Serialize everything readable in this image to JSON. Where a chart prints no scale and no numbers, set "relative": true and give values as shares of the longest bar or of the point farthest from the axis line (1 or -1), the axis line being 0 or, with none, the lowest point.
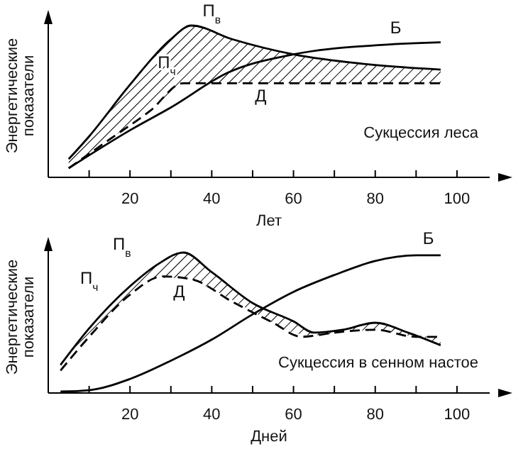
{
  "chart_data": [
    {
      "type": "line",
      "relative": true,
      "ylabel": "Энергетические показатели",
      "xlabel": "Лет",
      "xlim": [
        0,
        108
      ],
      "xticks": [
        {
          "value": 10,
          "label": null
        },
        20,
        {
          "value": 30,
          "label": null
        },
        40,
        {
          "value": 50,
          "label": null
        },
        60,
        {
          "value": 70,
          "label": null
        },
        80,
        {
          "value": 90,
          "label": null
        },
        100
      ],
      "series": [
        {
          "color": "#000000",
          "line_style": "solid",
          "x": [
            5,
            10,
            20,
            30,
            35,
            45,
            60,
            80,
            96
          ],
          "values": [
            0.12,
            0.27,
            0.61,
            0.91,
            1,
            0.91,
            0.81,
            0.74,
            0.71
          ],
          "lower": [
            0.06,
            0.15,
            0.35,
            0.55,
            0.62,
            0.62,
            0.62,
            0.62,
            0.62
          ],
          "upper": [
            0.12,
            0.27,
            0.61,
            0.91,
            1,
            0.91,
            0.81,
            0.74,
            0.71
          ]
        },
        {
          "color": "#000000",
          "line_style": "dashed",
          "x": [
            5,
            15,
            25,
            33,
            96
          ],
          "values": [
            0.06,
            0.25,
            0.44,
            0.62,
            0.62
          ]
        },
        {
          "color": "#000000",
          "line_style": "solid",
          "x": [
            5,
            20,
            30,
            44,
            60,
            80,
            96
          ],
          "values": [
            0.06,
            0.31,
            0.46,
            0.69,
            0.81,
            0.87,
            0.89
          ]
        }
      ],
      "annotations": [
        "П$_{в}$",
        "П$_{ч}$",
        "Д",
        "Б",
        "Сукцессия леса"
      ]
    },
    {
      "type": "line",
      "relative": true,
      "ylabel": "Энергетические показатели",
      "xlabel": "Дней",
      "xlim": [
        0,
        108
      ],
      "xticks": [
        {
          "value": 10,
          "label": null
        },
        20,
        {
          "value": 30,
          "label": null
        },
        40,
        {
          "value": 50,
          "label": null
        },
        60,
        {
          "value": 70,
          "label": null
        },
        80,
        {
          "value": 90,
          "label": null
        },
        100
      ],
      "series": [
        {
          "color": "#000000",
          "line_style": "solid",
          "x": [
            3,
            10,
            20,
            27,
            33,
            40,
            50,
            60,
            65,
            72,
            80,
            88,
            96
          ],
          "values": [
            0.2,
            0.46,
            0.76,
            0.92,
            1,
            0.86,
            0.64,
            0.51,
            0.43,
            0.45,
            0.5,
            0.43,
            0.34
          ],
          "lower": [
            0.16,
            0.4,
            0.7,
            0.82,
            0.82,
            0.74,
            0.58,
            0.43,
            0.41,
            0.43,
            0.45,
            0.41,
            0.4
          ],
          "upper": [
            0.2,
            0.46,
            0.76,
            0.92,
            1,
            0.86,
            0.64,
            0.51,
            0.43,
            0.45,
            0.5,
            0.43,
            0.34
          ]
        },
        {
          "color": "#000000",
          "line_style": "dashed",
          "x": [
            3,
            10,
            20,
            28,
            35,
            45,
            55,
            62,
            70,
            80,
            90,
            96
          ],
          "values": [
            0.16,
            0.4,
            0.7,
            0.83,
            0.81,
            0.65,
            0.5,
            0.4,
            0.43,
            0.45,
            0.4,
            0.4
          ]
        },
        {
          "color": "#000000",
          "line_style": "solid",
          "x": [
            3,
            10,
            20,
            30,
            40,
            50,
            60,
            70,
            80,
            90,
            96
          ],
          "values": [
            0.01,
            0.02,
            0.1,
            0.23,
            0.38,
            0.56,
            0.72,
            0.84,
            0.94,
            0.98,
            0.98
          ]
        }
      ],
      "annotations": [
        "П$_{в}$",
        "П$_{ч}$",
        "Д",
        "Б",
        "Сукцессия в сенном настое"
      ]
    }
  ]
}
